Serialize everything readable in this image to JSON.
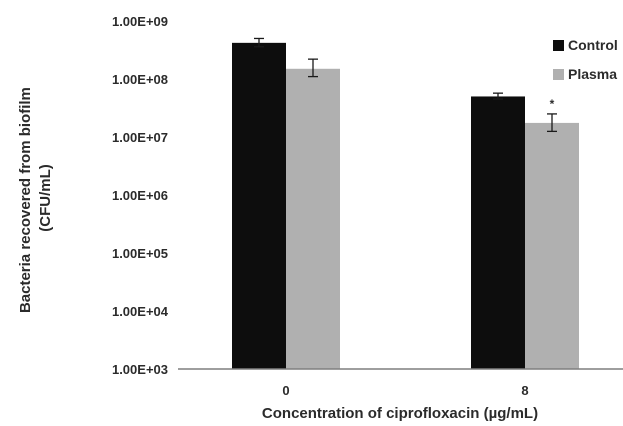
{
  "chart_data": {
    "type": "bar",
    "y_scale": "log10",
    "ylim": [
      1000,
      1000000000
    ],
    "y_ticks": [
      {
        "value": 1000,
        "label": "1.00E+03"
      },
      {
        "value": 10000,
        "label": "1.00E+04"
      },
      {
        "value": 100000,
        "label": "1.00E+05"
      },
      {
        "value": 1000000,
        "label": "1.00E+06"
      },
      {
        "value": 10000000,
        "label": "1.00E+07"
      },
      {
        "value": 100000000,
        "label": "1.00E+08"
      },
      {
        "value": 1000000000,
        "label": "1.00E+09"
      }
    ],
    "categories": [
      "0",
      "8"
    ],
    "series": [
      {
        "name": "Control",
        "color": "#0d0d0d",
        "values": [
          420000000,
          50000000
        ],
        "error": [
          [
            360000000,
            500000000
          ],
          [
            45000000,
            57000000
          ]
        ]
      },
      {
        "name": "Plasma",
        "color": "#b0b0b0",
        "values": [
          150000000,
          17500000
        ],
        "error": [
          [
            110000000,
            220000000
          ],
          [
            12500000,
            25000000
          ]
        ]
      }
    ],
    "annotations": [
      {
        "category": "8",
        "series": "Plasma",
        "text": "*"
      }
    ],
    "xlabel": "Concentration of ciprofloxacin (µg/mL)",
    "ylabel": [
      "Bacteria recovered from biofilm",
      "(CFU/mL)"
    ],
    "legend_position": "right",
    "grid": false
  }
}
